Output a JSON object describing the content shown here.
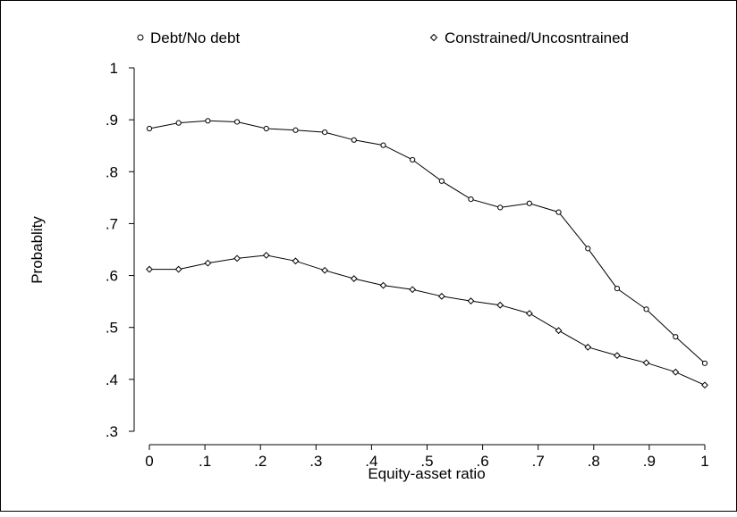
{
  "chart_data": {
    "type": "line",
    "title": "",
    "xlabel": "Equity-asset ratio",
    "ylabel": "Probablity",
    "xlim": [
      0,
      1
    ],
    "ylim": [
      0.3,
      1
    ],
    "x_ticks": [
      0,
      0.1,
      0.2,
      0.3,
      0.4,
      0.5,
      0.6,
      0.7,
      0.8,
      0.9,
      1
    ],
    "x_tick_labels": [
      "0",
      ".1",
      ".2",
      ".3",
      ".4",
      ".5",
      ".6",
      ".7",
      ".8",
      ".9",
      "1"
    ],
    "y_ticks": [
      0.3,
      0.4,
      0.5,
      0.6,
      0.7,
      0.8,
      0.9,
      1
    ],
    "y_tick_labels": [
      ".3",
      ".4",
      ".5",
      ".6",
      ".7",
      ".8",
      ".9",
      "1"
    ],
    "grid": false,
    "legend_position": "top",
    "x": [
      0,
      0.0526,
      0.1053,
      0.1579,
      0.2105,
      0.2632,
      0.3158,
      0.3684,
      0.4211,
      0.4737,
      0.5263,
      0.5789,
      0.6316,
      0.6842,
      0.7368,
      0.7895,
      0.8421,
      0.8947,
      0.9474,
      1
    ],
    "series": [
      {
        "name": "Debt/No debt",
        "marker": "circle",
        "values": [
          0.883,
          0.894,
          0.898,
          0.896,
          0.883,
          0.88,
          0.876,
          0.861,
          0.851,
          0.823,
          0.782,
          0.747,
          0.731,
          0.739,
          0.722,
          0.652,
          0.575,
          0.535,
          0.482,
          0.431
        ]
      },
      {
        "name": "Constrained/Uncosntrained",
        "marker": "diamond",
        "values": [
          0.612,
          0.612,
          0.624,
          0.633,
          0.639,
          0.628,
          0.61,
          0.594,
          0.581,
          0.573,
          0.56,
          0.551,
          0.543,
          0.527,
          0.494,
          0.462,
          0.446,
          0.432,
          0.414,
          0.389
        ]
      }
    ]
  },
  "colors": {
    "line": "#000000",
    "background": "#ffffff"
  }
}
